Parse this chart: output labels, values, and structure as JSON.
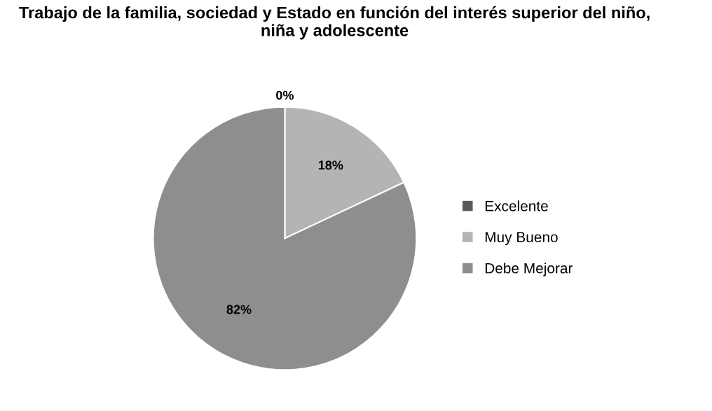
{
  "chart_data": {
    "type": "pie",
    "title": "Trabajo de la familia, sociedad y Estado en función del interés superior del niño, niña y adolescente",
    "categories": [
      "Excelente",
      "Muy Bueno",
      "Debe Mejorar"
    ],
    "values": [
      0,
      18,
      82
    ],
    "colors": [
      "#5a5a5a",
      "#b4b4b4",
      "#8e8e8e"
    ],
    "value_labels": [
      "0%",
      "18%",
      "82%"
    ],
    "legend": "right"
  }
}
